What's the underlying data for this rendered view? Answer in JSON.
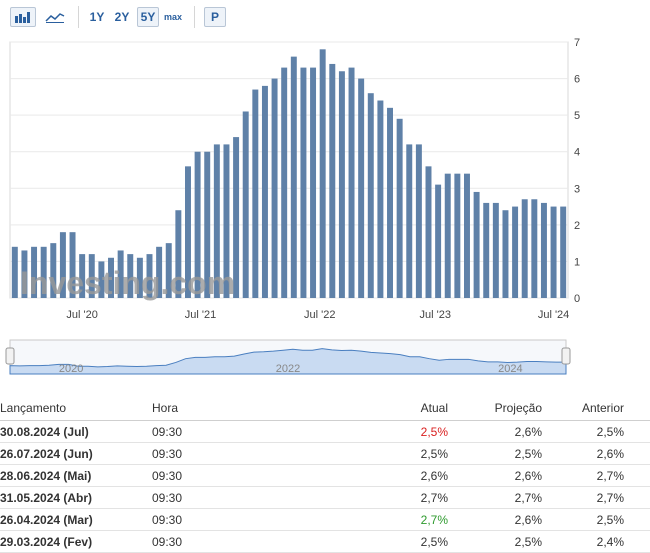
{
  "toolbar": {
    "ranges": [
      "1Y",
      "2Y",
      "5Y",
      "max"
    ],
    "selected_range": "5Y",
    "p_label": "P",
    "bar_icon": "bar-chart-icon",
    "area_icon": "area-chart-icon"
  },
  "chart_data": {
    "type": "bar",
    "color": "#5f81a8",
    "values": [
      1.4,
      1.3,
      1.4,
      1.4,
      1.5,
      1.8,
      1.8,
      1.2,
      1.2,
      1.0,
      1.1,
      1.3,
      1.2,
      1.1,
      1.2,
      1.4,
      1.5,
      2.4,
      3.6,
      4.0,
      4.0,
      4.2,
      4.2,
      4.4,
      5.1,
      5.7,
      5.8,
      6.0,
      6.3,
      6.6,
      6.3,
      6.3,
      6.8,
      6.4,
      6.2,
      6.3,
      6.0,
      5.6,
      5.4,
      5.2,
      4.9,
      4.2,
      4.2,
      3.6,
      3.1,
      3.4,
      3.4,
      3.4,
      2.9,
      2.6,
      2.6,
      2.4,
      2.5,
      2.7,
      2.7,
      2.6,
      2.5,
      2.5
    ],
    "y_ticks": [
      "0",
      "1",
      "2",
      "3",
      "4",
      "5",
      "6",
      "7"
    ],
    "ylim": [
      0,
      7
    ],
    "x_tick_labels": [
      {
        "label": "Jul '20",
        "index": 7.5
      },
      {
        "label": "Jul '21",
        "index": 19.8
      },
      {
        "label": "Jul '22",
        "index": 32.2
      },
      {
        "label": "Jul '23",
        "index": 44.2
      },
      {
        "label": "Jul '24",
        "index": 56.5
      }
    ],
    "navigator_years": [
      "2020",
      "2022",
      "2024"
    ],
    "watermark": "Investing.com"
  },
  "table": {
    "headers": [
      "Lançamento",
      "Hora",
      "Atual",
      "Projeção",
      "Anterior"
    ],
    "rows": [
      {
        "date": "30.08.2024 (Jul)",
        "time": "09:30",
        "actual": "2,5%",
        "actual_color": "red",
        "forecast": "2,6%",
        "previous": "2,5%"
      },
      {
        "date": "26.07.2024 (Jun)",
        "time": "09:30",
        "actual": "2,5%",
        "actual_color": "",
        "forecast": "2,5%",
        "previous": "2,6%"
      },
      {
        "date": "28.06.2024 (Mai)",
        "time": "09:30",
        "actual": "2,6%",
        "actual_color": "",
        "forecast": "2,6%",
        "previous": "2,7%"
      },
      {
        "date": "31.05.2024 (Abr)",
        "time": "09:30",
        "actual": "2,7%",
        "actual_color": "",
        "forecast": "2,7%",
        "previous": "2,7%"
      },
      {
        "date": "26.04.2024 (Mar)",
        "time": "09:30",
        "actual": "2,7%",
        "actual_color": "green",
        "forecast": "2,6%",
        "previous": "2,5%"
      },
      {
        "date": "29.03.2024 (Fev)",
        "time": "09:30",
        "actual": "2,5%",
        "actual_color": "",
        "forecast": "2,5%",
        "previous": "2,4%"
      }
    ]
  }
}
